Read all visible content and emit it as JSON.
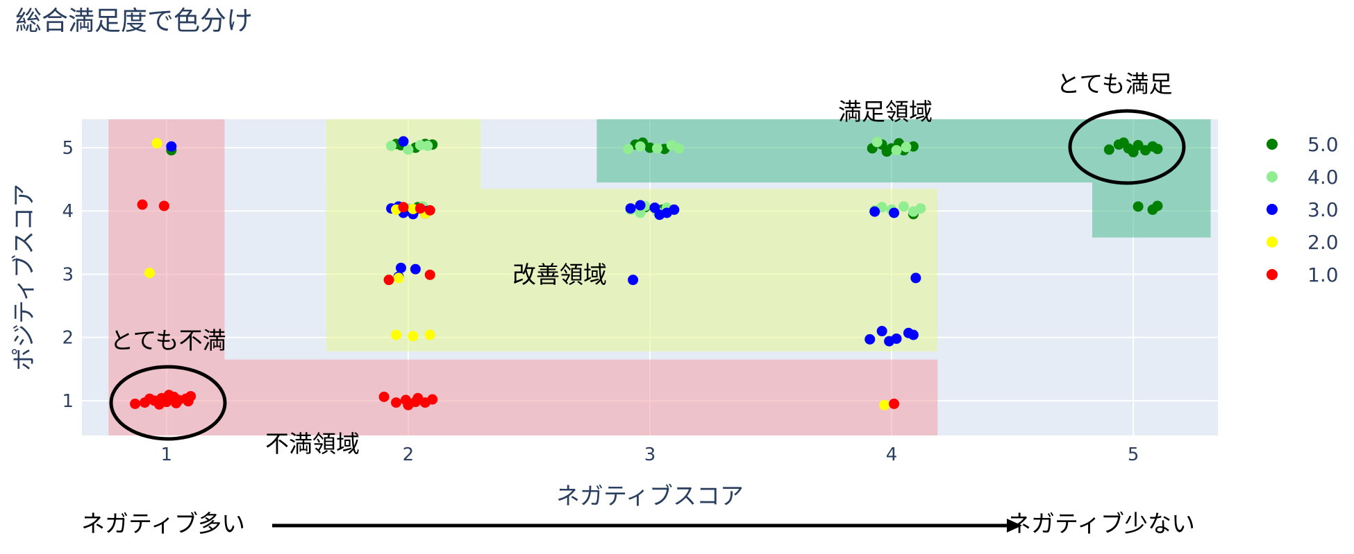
{
  "chart_data": {
    "type": "scatter",
    "title": "総合満足度で色分け",
    "xlabel": "ネガティブスコア",
    "ylabel": "ポジティブスコア",
    "xlim": [
      0.65,
      5.35
    ],
    "ylim": [
      0.45,
      5.45
    ],
    "x_ticks": [
      "1",
      "2",
      "3",
      "4",
      "5"
    ],
    "y_ticks": [
      "1",
      "2",
      "3",
      "4",
      "5"
    ],
    "grid": true,
    "legend_position": "right",
    "colors": {
      "5.0": "#008000",
      "4.0": "#90ee90",
      "3.0": "#0000ff",
      "2.0": "#ffff00",
      "1.0": "#ff0000"
    },
    "series": [
      {
        "name": "5.0",
        "points": [
          [
            1.02,
            4.96
          ],
          [
            1.97,
            5.04
          ],
          [
            2.03,
            5.0
          ],
          [
            2.07,
            5.06
          ],
          [
            2.1,
            5.05
          ],
          [
            1.95,
            5.06
          ],
          [
            2.94,
            5.05
          ],
          [
            3.0,
            5.0
          ],
          [
            3.06,
            4.98
          ],
          [
            2.97,
            5.08
          ],
          [
            3.92,
            4.99
          ],
          [
            3.96,
            5.05
          ],
          [
            4.0,
            4.99
          ],
          [
            4.05,
            4.96
          ],
          [
            4.09,
            5.02
          ],
          [
            4.03,
            5.07
          ],
          [
            3.98,
            4.94
          ],
          [
            4.9,
            4.97
          ],
          [
            4.94,
            5.05
          ],
          [
            4.98,
            4.99
          ],
          [
            5.02,
            5.04
          ],
          [
            5.05,
            4.96
          ],
          [
            5.08,
            5.02
          ],
          [
            5.1,
            4.98
          ],
          [
            4.96,
            5.08
          ],
          [
            5.0,
            4.93
          ],
          [
            5.02,
            4.07
          ],
          [
            5.08,
            4.02
          ],
          [
            5.1,
            4.08
          ],
          [
            2.98,
            4.06
          ],
          [
            3.05,
            4.02
          ],
          [
            4.09,
            3.95
          ],
          [
            2.04,
            4.06
          ]
        ]
      },
      {
        "name": "4.0",
        "points": [
          [
            1.93,
            5.03
          ],
          [
            2.0,
            4.97
          ],
          [
            2.05,
            5.04
          ],
          [
            2.08,
            5.03
          ],
          [
            2.91,
            4.98
          ],
          [
            2.96,
            5.02
          ],
          [
            3.03,
            4.99
          ],
          [
            3.09,
            5.04
          ],
          [
            3.12,
            4.99
          ],
          [
            3.94,
            5.09
          ],
          [
            4.02,
            4.96
          ],
          [
            4.06,
            5.01
          ],
          [
            2.92,
            4.02
          ],
          [
            2.98,
            4.08
          ],
          [
            3.03,
            3.99
          ],
          [
            3.07,
            4.05
          ],
          [
            2.96,
            3.97
          ],
          [
            3.96,
            4.06
          ],
          [
            4.0,
            4.02
          ],
          [
            4.05,
            4.07
          ],
          [
            4.09,
            3.99
          ],
          [
            4.12,
            4.04
          ],
          [
            3.93,
            4.01
          ],
          [
            2.0,
            4.04
          ],
          [
            2.06,
            4.07
          ]
        ]
      },
      {
        "name": "3.0",
        "points": [
          [
            1.02,
            5.02
          ],
          [
            1.98,
            5.1
          ],
          [
            1.93,
            4.04
          ],
          [
            1.98,
            3.97
          ],
          [
            2.03,
            4.02
          ],
          [
            2.08,
            4.0
          ],
          [
            1.96,
            4.07
          ],
          [
            2.02,
            3.95
          ],
          [
            2.07,
            3.96
          ],
          [
            1.97,
            3.1
          ],
          [
            2.03,
            3.08
          ],
          [
            1.96,
            2.96
          ],
          [
            2.92,
            4.04
          ],
          [
            2.96,
            4.09
          ],
          [
            3.02,
            4.05
          ],
          [
            3.07,
            3.97
          ],
          [
            3.1,
            4.02
          ],
          [
            3.04,
            3.94
          ],
          [
            2.93,
            2.91
          ],
          [
            3.93,
            3.99
          ],
          [
            4.01,
            3.97
          ],
          [
            4.1,
            2.94
          ],
          [
            3.91,
            1.97
          ],
          [
            3.96,
            2.1
          ],
          [
            4.02,
            1.98
          ],
          [
            4.07,
            2.07
          ],
          [
            4.09,
            2.04
          ],
          [
            3.99,
            1.94
          ]
        ]
      },
      {
        "name": "2.0",
        "points": [
          [
            0.96,
            5.07
          ],
          [
            0.93,
            3.02
          ],
          [
            1.95,
            4.02
          ],
          [
            2.02,
            4.03
          ],
          [
            2.07,
            3.96
          ],
          [
            1.96,
            2.94
          ],
          [
            1.95,
            2.04
          ],
          [
            2.02,
            2.02
          ],
          [
            2.09,
            2.04
          ],
          [
            3.97,
            0.93
          ]
        ]
      },
      {
        "name": "1.0",
        "points": [
          [
            0.9,
            4.1
          ],
          [
            0.99,
            4.08
          ],
          [
            1.98,
            4.06
          ],
          [
            2.05,
            4.04
          ],
          [
            2.09,
            4.01
          ],
          [
            1.92,
            2.91
          ],
          [
            2.09,
            2.99
          ],
          [
            0.87,
            0.95
          ],
          [
            0.91,
            0.97
          ],
          [
            0.95,
            1.0
          ],
          [
            0.98,
            1.04
          ],
          [
            1.0,
            0.98
          ],
          [
            1.03,
            1.06
          ],
          [
            1.05,
            1.01
          ],
          [
            1.08,
            1.03
          ],
          [
            1.1,
            1.07
          ],
          [
            0.93,
            1.03
          ],
          [
            0.97,
            0.94
          ],
          [
            1.01,
            1.09
          ],
          [
            1.04,
            0.96
          ],
          [
            1.09,
            0.99
          ],
          [
            1.9,
            1.06
          ],
          [
            1.95,
            0.97
          ],
          [
            1.99,
            1.01
          ],
          [
            2.0,
            0.93
          ],
          [
            2.04,
            1.04
          ],
          [
            2.07,
            0.97
          ],
          [
            2.1,
            1.02
          ],
          [
            2.03,
            0.98
          ],
          [
            4.01,
            0.95
          ]
        ]
      }
    ],
    "regions": [
      {
        "label": "満足領域",
        "color": "#4cbb8e",
        "rects": [
          [
            2.78,
            5.32,
            4.45,
            5.45
          ],
          [
            4.83,
            5.32,
            3.58,
            4.45
          ]
        ]
      },
      {
        "label": "改善領域",
        "color": "#e5f590",
        "rects": [
          [
            1.66,
            2.3,
            4.35,
            5.45
          ],
          [
            1.66,
            4.19,
            1.78,
            4.35
          ]
        ]
      },
      {
        "label": "不満領域",
        "color": "#f4a0a8",
        "rects": [
          [
            0.76,
            1.24,
            1.65,
            5.45
          ],
          [
            0.76,
            4.19,
            0.45,
            1.65
          ]
        ]
      }
    ],
    "annotations": [
      "満足領域",
      "改善領域",
      "不満領域",
      "とても満足",
      "とても不満"
    ],
    "arrow": {
      "left_label": "ネガティブ多い",
      "right_label": "ネガティブ少ない"
    }
  }
}
